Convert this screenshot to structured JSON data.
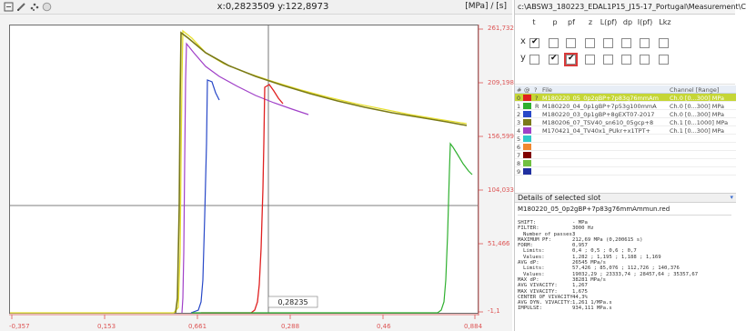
{
  "plot": {
    "cursor_readout": "x:0,2823509 y:122,8973",
    "units": "[MPa] / [s]",
    "y_ticks": [
      "261,732",
      "209,198",
      "156,599",
      "104,033",
      "51,466",
      "-1,1"
    ],
    "x_ticks": [
      "-0,357",
      "0,153",
      "0,661",
      "0,288",
      "0,46",
      "0,884"
    ],
    "cursor_value_label": "0,28235",
    "colors": {
      "background": "#ffffff",
      "crosshair": "#555555",
      "tick_label": "#dd5555",
      "series_yellow": "#e8e030",
      "series_olive": "#7a7a18",
      "series_violet": "#a040c8",
      "series_blue": "#2848c8",
      "series_red": "#e02020",
      "series_green": "#30b030"
    }
  },
  "toolbar": {
    "icons": [
      "select-tool-icon",
      "pencil-icon",
      "scatter-icon",
      "circle-icon"
    ]
  },
  "right": {
    "path": "c:\\ABSW3_180223_EDAL1P15_J15-17_Portugal\\Measurement\\C",
    "axis_grid": {
      "headers": [
        "t",
        "p",
        "pf",
        "z",
        "L(pf)",
        "dp",
        "I(pf)",
        "Lkz"
      ],
      "x_label": "x",
      "y_label": "y",
      "x_checked": [
        true,
        false,
        false,
        false,
        false,
        false,
        false,
        false
      ],
      "y_checked": [
        false,
        true,
        true,
        false,
        false,
        false,
        false,
        false
      ]
    },
    "table": {
      "headers": [
        "#",
        "@",
        "?",
        "File",
        "Channel [Range]"
      ],
      "rows": [
        {
          "num": "0",
          "color": "#e02020",
          "flag": "?",
          "file": "M180220_05_0p2gBP+7p83g76mmAm",
          "channel": "Ch.0 [0...300] MPa",
          "selected": true
        },
        {
          "num": "1",
          "color": "#30b030",
          "flag": "R",
          "file": "M180220_04_0p1gBP+7p53g100mmA",
          "channel": "Ch.0 [0...300] MPa",
          "selected": false
        },
        {
          "num": "2",
          "color": "#2848c8",
          "flag": "",
          "file": "M180220_03_0p1gBP+8gEXT07-2017",
          "channel": "Ch.0 [0...300] MPa",
          "selected": false
        },
        {
          "num": "3",
          "color": "#7a7a18",
          "flag": "",
          "file": "M180206_07_TSV40_sn610_05gcp+8",
          "channel": "Ch.1 [0...1000] MPa",
          "selected": false
        },
        {
          "num": "4",
          "color": "#a040c8",
          "flag": "",
          "file": "M170421_04_TV40x1_PUkr+x1TPT+",
          "channel": "Ch.1 [0...300] MPa",
          "selected": false
        },
        {
          "num": "5",
          "color": "#30c8c8",
          "flag": "",
          "file": "",
          "channel": "",
          "selected": false
        },
        {
          "num": "6",
          "color": "#f08830",
          "flag": "",
          "file": "",
          "channel": "",
          "selected": false
        },
        {
          "num": "7",
          "color": "#800000",
          "flag": "",
          "file": "",
          "channel": "",
          "selected": false
        },
        {
          "num": "8",
          "color": "#70c040",
          "flag": "",
          "file": "",
          "channel": "",
          "selected": false
        },
        {
          "num": "9",
          "color": "#2030a0",
          "flag": "",
          "file": "",
          "channel": "",
          "selected": false
        }
      ]
    },
    "details": {
      "title": "Details of selected slot",
      "collapse_glyph": "▾",
      "file": "M180220_05_0p2gBP+7p83g76mmAmmun.red",
      "items": [
        {
          "key": "SHIFT:",
          "value": "- MPa",
          "indent": false
        },
        {
          "key": "FILTER:",
          "value": "3000 Hz",
          "indent": false
        },
        {
          "key": "Number of passes:",
          "value": "3",
          "indent": true
        },
        {
          "key": "MAXIMUM PF:",
          "value": "212,69 MPa (0,200615 s)",
          "indent": false
        },
        {
          "key": "FORM:",
          "value": "0,957",
          "indent": false
        },
        {
          "key": "Limits:",
          "value": "0,4 ; 0,5 ; 0,6 ; 0,7",
          "indent": true
        },
        {
          "key": "Values:",
          "value": "1,282 ; 1,195 ; 1,188 ; 1,169",
          "indent": true
        },
        {
          "key": "AVG dP:",
          "value": "26545 MPa/s",
          "indent": false
        },
        {
          "key": "Limits:",
          "value": "57,426 ; 85,076 ; 112,726 ; 140,376",
          "indent": true
        },
        {
          "key": "Values:",
          "value": "19032,29 ; 23333,74 ; 28457,64 ; 35357,67",
          "indent": true
        },
        {
          "key": "MAX dP:",
          "value": "38281 MPa/s",
          "indent": false
        },
        {
          "key": "AVG VIVACITY:",
          "value": "1,267",
          "indent": false
        },
        {
          "key": "MAX VIVACITY:",
          "value": "1,675",
          "indent": false
        },
        {
          "key": "CENTER OF VIVACITY:",
          "value": "44,3%",
          "indent": false
        },
        {
          "key": "AVG DYN. VIVACITY:",
          "value": "1,261 1/MPa.s",
          "indent": false
        },
        {
          "key": "IMPULSE:",
          "value": "934,111 MPa.s",
          "indent": false
        }
      ]
    }
  }
}
